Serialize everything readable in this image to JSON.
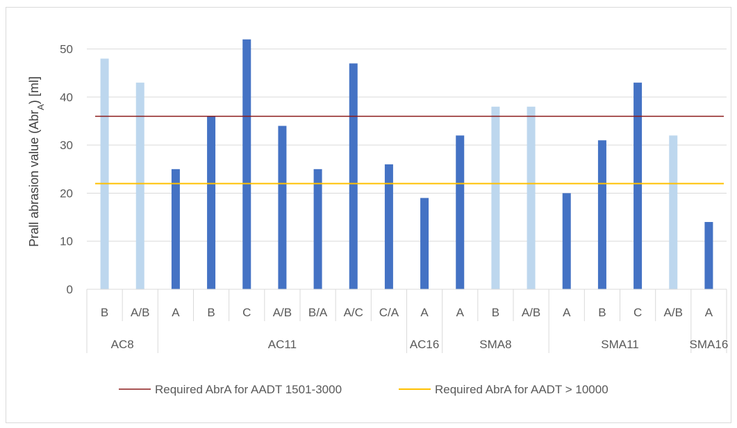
{
  "chart_data": {
    "type": "bar",
    "ylabel": "Prall abrasion value (Abr",
    "ylabel_sub": "A",
    "ylabel_end": ") [ml]",
    "ylim": [
      0,
      55
    ],
    "yticks": [
      "0",
      "10",
      "20",
      "30",
      "40",
      "50"
    ],
    "ytick_values": [
      0,
      10,
      20,
      30,
      40,
      50
    ],
    "grid": "horizontal",
    "legend_position": "bottom",
    "colors": {
      "dark": "#4472c4",
      "light": "#bdd7ee",
      "line1": "#8b1a1a",
      "line2": "#ffc000",
      "grid": "#d9d9d9"
    },
    "groups": [
      {
        "name": "AC8",
        "categories": [
          "B",
          "A/B"
        ]
      },
      {
        "name": "AC11",
        "categories": [
          "A",
          "B",
          "C",
          "A/B",
          "B/A",
          "A/C",
          "C/A"
        ]
      },
      {
        "name": "AC16",
        "categories": [
          "A"
        ]
      },
      {
        "name": "SMA8",
        "categories": [
          "A",
          "B",
          "A/B"
        ]
      },
      {
        "name": "SMA11",
        "categories": [
          "A",
          "B",
          "C",
          "A/B"
        ]
      },
      {
        "name": "SMA16",
        "categories": [
          "A"
        ]
      }
    ],
    "values": [
      48,
      43,
      25,
      36,
      52,
      34,
      25,
      47,
      26,
      19,
      32,
      38,
      38,
      20,
      31,
      43,
      32,
      14
    ],
    "bar_shade": [
      "light",
      "light",
      "dark",
      "dark",
      "dark",
      "dark",
      "dark",
      "dark",
      "dark",
      "dark",
      "dark",
      "light",
      "light",
      "dark",
      "dark",
      "dark",
      "light",
      "dark"
    ],
    "reference_lines": [
      {
        "name": "Required AbrA for AADT 1501-3000",
        "value": 36,
        "color": "#8b1a1a"
      },
      {
        "name": "Required AbrA for AADT > 10000",
        "value": 22,
        "color": "#ffc000"
      }
    ]
  }
}
